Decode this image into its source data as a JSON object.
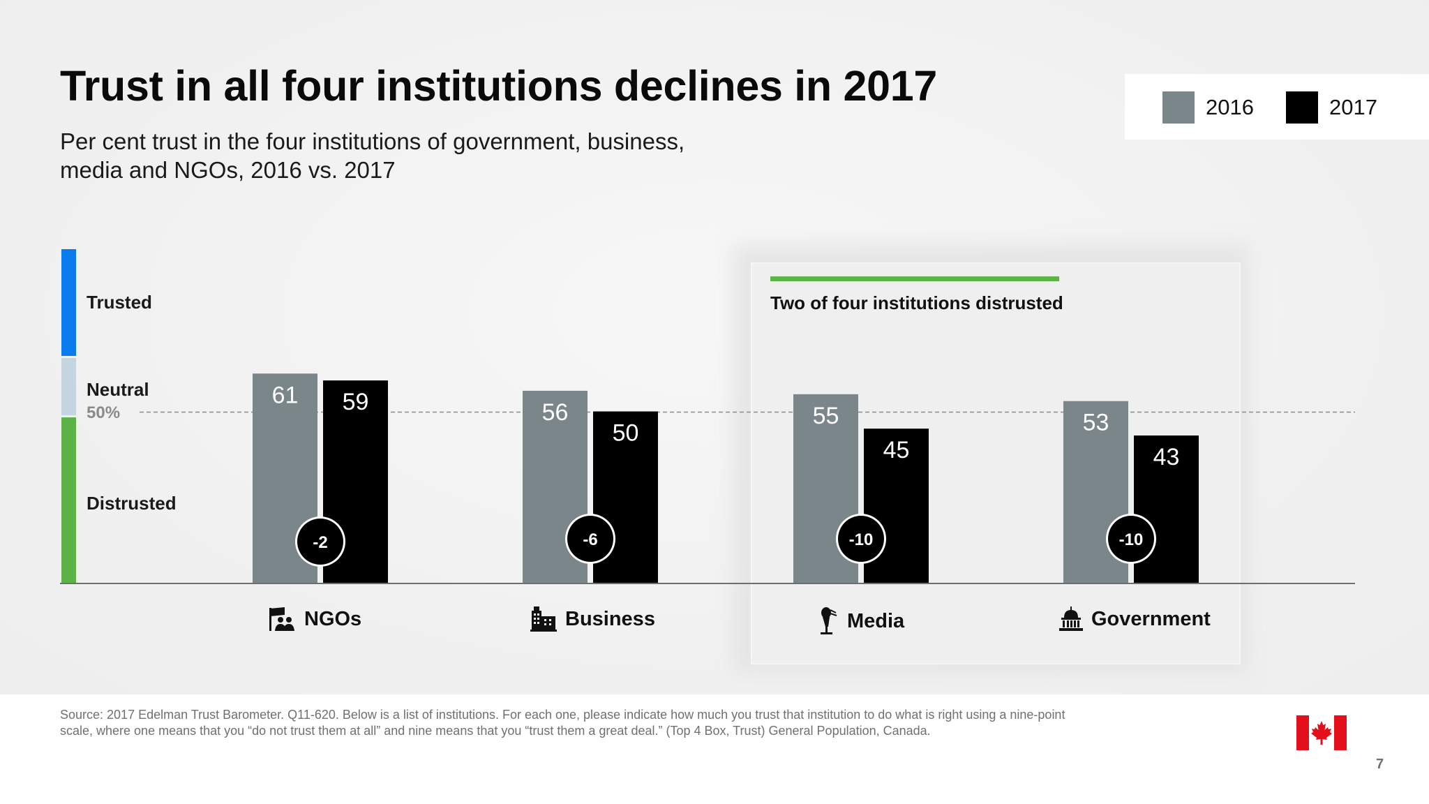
{
  "title": "Trust in all four institutions declines in 2017",
  "subtitle": "Per cent trust in the four institutions of government, business, media and NGOs, 2016 vs. 2017",
  "legend": [
    {
      "label": "2016",
      "color": "#7a868a"
    },
    {
      "label": "2017",
      "color": "#000000"
    }
  ],
  "scale": {
    "trusted": "Trusted",
    "neutral": "Neutral",
    "fifty": "50%",
    "distrusted": "Distrusted",
    "colors": {
      "trusted": "#0a7cf0",
      "neutral": "#c4d5df",
      "distrusted": "#5db347"
    }
  },
  "callout": "Two of four institutions distrusted",
  "chart_data": {
    "type": "bar",
    "categories": [
      "NGOs",
      "Business",
      "Media",
      "Government"
    ],
    "series": [
      {
        "name": "2016",
        "values": [
          61,
          56,
          55,
          53
        ],
        "color": "#7a868a"
      },
      {
        "name": "2017",
        "values": [
          59,
          50,
          45,
          43
        ],
        "color": "#000000"
      }
    ],
    "changes": [
      "-2",
      "-6",
      "-10",
      "-10"
    ],
    "reference_line": 50,
    "ylim": [
      0,
      100
    ],
    "category_icons": [
      "ngo-icon",
      "business-icon",
      "media-icon",
      "government-icon"
    ]
  },
  "source": "Source: 2017 Edelman Trust Barometer. Q11-620. Below is a list of institutions. For each one, please indicate how much you trust that institution to do what is right using a nine-point scale, where one means that you “do not trust them at all” and nine means that you “trust them a great deal.” (Top 4 Box, Trust) General Population, Canada.",
  "page_number": "7",
  "flag_icon": "canada-flag-icon"
}
